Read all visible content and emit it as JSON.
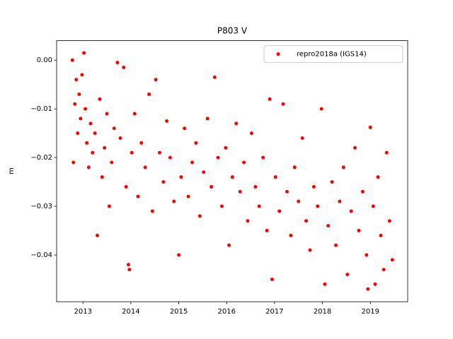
{
  "chart_data": {
    "type": "scatter",
    "title": "P803 V",
    "ylabel": "m",
    "xlim": [
      2012.45,
      2019.78
    ],
    "ylim": [
      -0.0496,
      0.004
    ],
    "xticks": [
      2013,
      2014,
      2015,
      2016,
      2017,
      2018,
      2019
    ],
    "yticks": [
      {
        "value": 0,
        "label": "0.00"
      },
      {
        "value": -0.01,
        "label": "−0.01"
      },
      {
        "value": -0.02,
        "label": "−0.02"
      },
      {
        "value": -0.03,
        "label": "−0.03"
      },
      {
        "value": -0.04,
        "label": "−0.04"
      }
    ],
    "legend": "upper right",
    "x": [
      2012.78,
      2012.8,
      2012.83,
      2012.86,
      2012.89,
      2012.92,
      2012.95,
      2012.98,
      2013.02,
      2013.05,
      2013.08,
      2013.12,
      2013.16,
      2013.2,
      2013.25,
      2013.3,
      2013.35,
      2013.4,
      2013.45,
      2013.5,
      2013.55,
      2013.6,
      2013.65,
      2013.72,
      2013.78,
      2013.85,
      2013.9,
      2013.95,
      2013.97,
      2014.02,
      2014.08,
      2014.15,
      2014.22,
      2014.3,
      2014.38,
      2014.45,
      2014.52,
      2014.6,
      2014.68,
      2014.75,
      2014.82,
      2014.9,
      2015.0,
      2015.05,
      2015.12,
      2015.2,
      2015.28,
      2015.36,
      2015.44,
      2015.52,
      2015.6,
      2015.68,
      2015.75,
      2015.82,
      2015.9,
      2015.98,
      2016.05,
      2016.12,
      2016.2,
      2016.28,
      2016.36,
      2016.44,
      2016.52,
      2016.6,
      2016.68,
      2016.76,
      2016.84,
      2016.9,
      2016.95,
      2017.02,
      2017.1,
      2017.18,
      2017.26,
      2017.34,
      2017.42,
      2017.5,
      2017.58,
      2017.66,
      2017.74,
      2017.82,
      2017.9,
      2017.98,
      2018.05,
      2018.12,
      2018.2,
      2018.28,
      2018.36,
      2018.44,
      2018.52,
      2018.6,
      2018.68,
      2018.76,
      2018.84,
      2018.92,
      2018.95,
      2019.0,
      2019.06,
      2019.1,
      2019.16,
      2019.22,
      2019.28,
      2019.34,
      2019.4,
      2019.46
    ],
    "series": [
      {
        "name": "repro2018a (IGS14)",
        "color": "#ff0000",
        "values": [
          0.0,
          -0.021,
          -0.009,
          -0.004,
          -0.015,
          -0.007,
          -0.012,
          -0.003,
          0.0015,
          -0.01,
          -0.017,
          -0.022,
          -0.013,
          -0.019,
          -0.015,
          -0.036,
          -0.008,
          -0.024,
          -0.018,
          -0.011,
          -0.03,
          -0.021,
          -0.014,
          -0.0005,
          -0.016,
          -0.0015,
          -0.026,
          -0.042,
          -0.043,
          -0.019,
          -0.011,
          -0.028,
          -0.017,
          -0.022,
          -0.007,
          -0.031,
          -0.004,
          -0.019,
          -0.025,
          -0.0125,
          -0.02,
          -0.029,
          -0.04,
          -0.024,
          -0.014,
          -0.028,
          -0.021,
          -0.017,
          -0.032,
          -0.023,
          -0.012,
          -0.026,
          -0.0035,
          -0.02,
          -0.03,
          -0.018,
          -0.038,
          -0.024,
          -0.013,
          -0.027,
          -0.021,
          -0.033,
          -0.015,
          -0.026,
          -0.03,
          -0.02,
          -0.035,
          -0.008,
          -0.045,
          -0.024,
          -0.031,
          -0.009,
          -0.027,
          -0.036,
          -0.022,
          -0.029,
          -0.016,
          -0.033,
          -0.039,
          -0.026,
          -0.03,
          -0.01,
          -0.046,
          -0.034,
          -0.025,
          -0.038,
          -0.029,
          -0.022,
          -0.044,
          -0.031,
          -0.018,
          -0.035,
          -0.027,
          -0.04,
          -0.047,
          -0.0138,
          -0.03,
          -0.046,
          -0.024,
          -0.036,
          -0.043,
          -0.019,
          -0.033,
          -0.041
        ]
      }
    ]
  }
}
